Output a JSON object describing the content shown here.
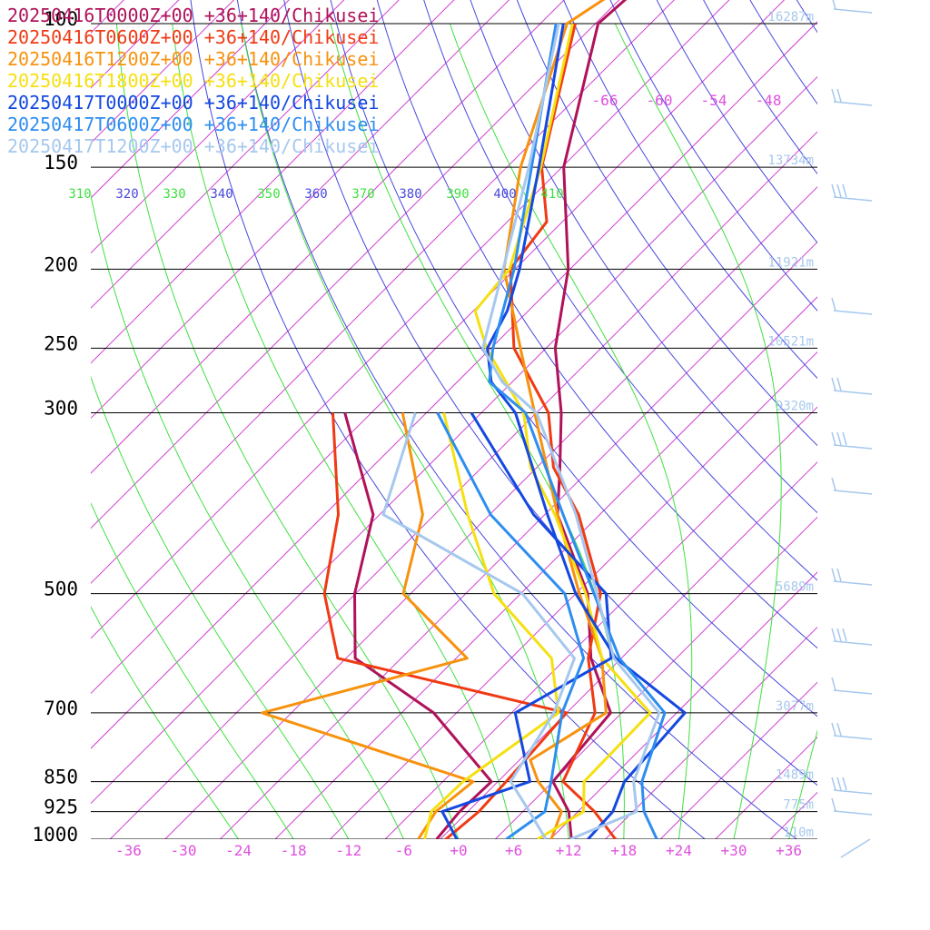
{
  "chart_data": {
    "type": "line",
    "title": "",
    "legend": [
      {
        "label": "20250416T0000Z+00 +36+140/Chikusei",
        "color": "#b0125a"
      },
      {
        "label": "20250416T0600Z+00 +36+140/Chikusei",
        "color": "#f03a14"
      },
      {
        "label": "20250416T1200Z+00 +36+140/Chikusei",
        "color": "#f7920e"
      },
      {
        "label": "20250416T1800Z+00 +36+140/Chikusei",
        "color": "#f5e012"
      },
      {
        "label": "20250417T0000Z+00 +36+140/Chikusei",
        "color": "#1448e0"
      },
      {
        "label": "20250417T0600Z+00 +36+140/Chikusei",
        "color": "#2d8ef0"
      },
      {
        "label": "20250417T1200Z+00 +36+140/Chikusei",
        "color": "#a6c8ee"
      }
    ],
    "legend_placement": "top-left",
    "pressure_levels": [
      {
        "label": "100",
        "p": 100,
        "height_label": "16287m"
      },
      {
        "label": "150",
        "p": 150,
        "height_label": "13734m"
      },
      {
        "label": "200",
        "p": 200,
        "height_label": "11921m"
      },
      {
        "label": "250",
        "p": 250,
        "height_label": "10521m"
      },
      {
        "label": "300",
        "p": 300,
        "height_label": "9320m"
      },
      {
        "label": "500",
        "p": 500,
        "height_label": "5689m"
      },
      {
        "label": "700",
        "p": 700,
        "height_label": "3077m"
      },
      {
        "label": "850",
        "p": 850,
        "height_label": "1489m"
      },
      {
        "label": "925",
        "p": 925,
        "height_label": "775m"
      },
      {
        "label": "1000",
        "p": 1000,
        "height_label": "110m"
      }
    ],
    "x_ticks": [
      "-36",
      "-30",
      "-24",
      "-18",
      "-12",
      "-6",
      "+0",
      "+6",
      "+12",
      "+18",
      "+24",
      "+30",
      "+36"
    ],
    "x_tick_values": [
      -36,
      -30,
      -24,
      -18,
      -12,
      -6,
      0,
      6,
      12,
      18,
      24,
      30,
      36
    ],
    "top_temperature_labels": [
      "-66",
      "-60",
      "-54",
      "-48"
    ],
    "theta_e_labels": [
      "310",
      "320",
      "330",
      "340",
      "350",
      "360",
      "370",
      "380",
      "390",
      "400",
      "410"
    ],
    "colors": {
      "isotherm": "#d040d0",
      "dry_adiabat": "#4848dd",
      "moist_adiabat": "#40e040",
      "isobar": "#000000",
      "wind_barb": "#a6c8ee"
    },
    "grid": true,
    "series": [
      {
        "name": "20250416T0000Z+00 +36+140/Chikusei",
        "kind": "temperature",
        "points": [
          {
            "p": 1000,
            "t": 12.3
          },
          {
            "p": 925,
            "t": 9.0
          },
          {
            "p": 850,
            "t": 4.0
          },
          {
            "p": 700,
            "t": 2.8
          },
          {
            "p": 600,
            "t": -5.3
          },
          {
            "p": 500,
            "t": -12.7
          },
          {
            "p": 400,
            "t": -24.6
          },
          {
            "p": 350,
            "t": -29.5
          },
          {
            "p": 300,
            "t": -35.3
          },
          {
            "p": 250,
            "t": -43.0
          },
          {
            "p": 200,
            "t": -50.2
          },
          {
            "p": 150,
            "t": -61.8
          },
          {
            "p": 100,
            "t": -73.7
          },
          {
            "p": 70,
            "t": -71.9
          }
        ]
      },
      {
        "name": "20250416T0000Z+00 +36+140/Chikusei",
        "kind": "dewpoint",
        "points": [
          {
            "p": 1000,
            "t": -2.4
          },
          {
            "p": 925,
            "t": -2.9
          },
          {
            "p": 850,
            "t": -2.7
          },
          {
            "p": 700,
            "t": -16.5
          },
          {
            "p": 600,
            "t": -31.0
          },
          {
            "p": 500,
            "t": -38.1
          },
          {
            "p": 400,
            "t": -44.7
          },
          {
            "p": 300,
            "t": -58.9
          }
        ]
      },
      {
        "name": "20250416T0600Z+00 +36+140/Chikusei",
        "kind": "temperature",
        "points": [
          {
            "p": 1000,
            "t": 17.1
          },
          {
            "p": 925,
            "t": 11.8
          },
          {
            "p": 850,
            "t": 5.1
          },
          {
            "p": 700,
            "t": 1.1
          },
          {
            "p": 600,
            "t": -5.6
          },
          {
            "p": 500,
            "t": -11.3
          },
          {
            "p": 400,
            "t": -22.3
          },
          {
            "p": 350,
            "t": -30.2
          },
          {
            "p": 300,
            "t": -36.7
          },
          {
            "p": 250,
            "t": -47.5
          },
          {
            "p": 200,
            "t": -56.5
          },
          {
            "p": 175,
            "t": -57.7
          },
          {
            "p": 150,
            "t": -64.2
          },
          {
            "p": 100,
            "t": -76.2
          }
        ]
      },
      {
        "name": "20250416T0600Z+00 +36+140/Chikusei",
        "kind": "dewpoint",
        "points": [
          {
            "p": 1000,
            "t": -1.4
          },
          {
            "p": 925,
            "t": -0.8
          },
          {
            "p": 850,
            "t": -1.1
          },
          {
            "p": 700,
            "t": -2.0
          },
          {
            "p": 600,
            "t": -32.9
          },
          {
            "p": 500,
            "t": -41.4
          },
          {
            "p": 400,
            "t": -48.5
          },
          {
            "p": 300,
            "t": -60.2
          }
        ]
      },
      {
        "name": "20250416T1200Z+00 +36+140/Chikusei",
        "kind": "temperature",
        "points": [
          {
            "p": 1000,
            "t": 10.1
          },
          {
            "p": 925,
            "t": 8.2
          },
          {
            "p": 850,
            "t": 2.4
          },
          {
            "p": 800,
            "t": -0.8
          },
          {
            "p": 700,
            "t": 2.3
          },
          {
            "p": 600,
            "t": -4.1
          },
          {
            "p": 500,
            "t": -13.6
          },
          {
            "p": 400,
            "t": -24.6
          },
          {
            "p": 300,
            "t": -38.2
          },
          {
            "p": 250,
            "t": -46.8
          },
          {
            "p": 200,
            "t": -57.2
          },
          {
            "p": 150,
            "t": -66.5
          },
          {
            "p": 100,
            "t": -77.1
          },
          {
            "p": 70,
            "t": -70.0
          }
        ]
      },
      {
        "name": "20250416T1200Z+00 +36+140/Chikusei",
        "kind": "dewpoint",
        "points": [
          {
            "p": 1000,
            "t": -4.4
          },
          {
            "p": 925,
            "t": -5.5
          },
          {
            "p": 850,
            "t": -4.7
          },
          {
            "p": 700,
            "t": -35.2
          },
          {
            "p": 600,
            "t": -18.8
          },
          {
            "p": 500,
            "t": -32.8
          },
          {
            "p": 400,
            "t": -39.3
          },
          {
            "p": 300,
            "t": -52.6
          }
        ]
      },
      {
        "name": "20250416T1800Z+00 +36+140/Chikusei",
        "kind": "temperature",
        "points": [
          {
            "p": 1000,
            "t": 8.6
          },
          {
            "p": 925,
            "t": 10.6
          },
          {
            "p": 850,
            "t": 7.4
          },
          {
            "p": 700,
            "t": 7.1
          },
          {
            "p": 600,
            "t": -4.1
          },
          {
            "p": 500,
            "t": -12.9
          },
          {
            "p": 400,
            "t": -24.9
          },
          {
            "p": 350,
            "t": -32.7
          },
          {
            "p": 300,
            "t": -39.4
          },
          {
            "p": 250,
            "t": -50.5
          },
          {
            "p": 225,
            "t": -55.8
          },
          {
            "p": 200,
            "t": -56.6
          },
          {
            "p": 150,
            "t": -64.3
          },
          {
            "p": 100,
            "t": -76.5
          }
        ]
      },
      {
        "name": "20250416T1800Z+00 +36+140/Chikusei",
        "kind": "dewpoint",
        "points": [
          {
            "p": 1000,
            "t": -3.7
          },
          {
            "p": 925,
            "t": -6.0
          },
          {
            "p": 850,
            "t": -5.8
          },
          {
            "p": 700,
            "t": -2.9
          },
          {
            "p": 600,
            "t": -9.6
          },
          {
            "p": 500,
            "t": -22.9
          },
          {
            "p": 400,
            "t": -34.4
          },
          {
            "p": 300,
            "t": -48.1
          }
        ]
      },
      {
        "name": "20250417T0000Z+00 +36+140/Chikusei",
        "kind": "temperature",
        "points": [
          {
            "p": 1000,
            "t": 14.1
          },
          {
            "p": 925,
            "t": 13.8
          },
          {
            "p": 850,
            "t": 11.8
          },
          {
            "p": 700,
            "t": 10.9
          },
          {
            "p": 600,
            "t": -2.6
          },
          {
            "p": 500,
            "t": -14.0
          },
          {
            "p": 400,
            "t": -25.7
          },
          {
            "p": 300,
            "t": -40.3
          },
          {
            "p": 275,
            "t": -46.3
          },
          {
            "p": 250,
            "t": -50.4
          },
          {
            "p": 225,
            "t": -52.3
          },
          {
            "p": 200,
            "t": -55.5
          },
          {
            "p": 150,
            "t": -64.5
          },
          {
            "p": 100,
            "t": -77.5
          }
        ]
      },
      {
        "name": "20250417T0000Z+00 +36+140/Chikusei",
        "kind": "dewpoint",
        "points": [
          {
            "p": 1000,
            "t": -0.2
          },
          {
            "p": 925,
            "t": -4.8
          },
          {
            "p": 850,
            "t": 1.5
          },
          {
            "p": 700,
            "t": -7.6
          },
          {
            "p": 600,
            "t": -3.1
          },
          {
            "p": 500,
            "t": -10.7
          },
          {
            "p": 400,
            "t": -27.2
          },
          {
            "p": 300,
            "t": -45.1
          }
        ]
      },
      {
        "name": "20250417T0600Z+00 +36+140/Chikusei",
        "kind": "temperature",
        "points": [
          {
            "p": 1000,
            "t": 21.6
          },
          {
            "p": 925,
            "t": 17.2
          },
          {
            "p": 850,
            "t": 13.7
          },
          {
            "p": 700,
            "t": 8.7
          },
          {
            "p": 600,
            "t": -2.2
          },
          {
            "p": 500,
            "t": -12.0
          },
          {
            "p": 400,
            "t": -24.0
          },
          {
            "p": 300,
            "t": -39.2
          },
          {
            "p": 275,
            "t": -46.5
          },
          {
            "p": 250,
            "t": -49.8
          },
          {
            "p": 200,
            "t": -56.1
          },
          {
            "p": 150,
            "t": -65.3
          },
          {
            "p": 100,
            "t": -78.3
          }
        ]
      },
      {
        "name": "20250417T0600Z+00 +36+140/Chikusei",
        "kind": "dewpoint",
        "points": [
          {
            "p": 1000,
            "t": 5.2
          },
          {
            "p": 925,
            "t": 6.4
          },
          {
            "p": 850,
            "t": 3.8
          },
          {
            "p": 700,
            "t": -2.5
          },
          {
            "p": 600,
            "t": -6.1
          },
          {
            "p": 500,
            "t": -15.2
          },
          {
            "p": 400,
            "t": -31.9
          },
          {
            "p": 300,
            "t": -48.8
          }
        ]
      },
      {
        "name": "20250417T1200Z+00 +36+140/Chikusei",
        "kind": "temperature",
        "points": [
          {
            "p": 1000,
            "t": 12.2
          },
          {
            "p": 925,
            "t": 16.4
          },
          {
            "p": 850,
            "t": 12.8
          },
          {
            "p": 700,
            "t": 8.1
          },
          {
            "p": 600,
            "t": -2.8
          },
          {
            "p": 500,
            "t": -11.7
          },
          {
            "p": 400,
            "t": -22.6
          },
          {
            "p": 300,
            "t": -38.0
          },
          {
            "p": 275,
            "t": -45.1
          },
          {
            "p": 250,
            "t": -50.9
          },
          {
            "p": 200,
            "t": -57.3
          },
          {
            "p": 150,
            "t": -65.6
          },
          {
            "p": 100,
            "t": -78.0
          }
        ]
      },
      {
        "name": "20250417T1200Z+00 +36+140/Chikusei",
        "kind": "dewpoint",
        "points": [
          {
            "p": 1000,
            "t": 9.5
          },
          {
            "p": 925,
            "t": 4.7
          },
          {
            "p": 850,
            "t": -0.6
          },
          {
            "p": 700,
            "t": -3.4
          },
          {
            "p": 600,
            "t": -7.1
          },
          {
            "p": 500,
            "t": -19.8
          },
          {
            "p": 400,
            "t": -43.6
          },
          {
            "p": 300,
            "t": -51.2
          }
        ]
      }
    ]
  }
}
